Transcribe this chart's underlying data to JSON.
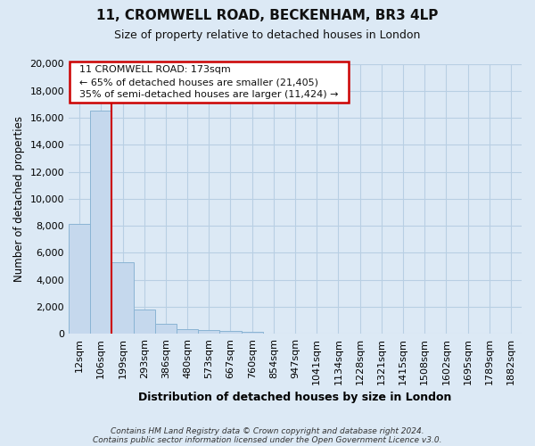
{
  "title": "11, CROMWELL ROAD, BECKENHAM, BR3 4LP",
  "subtitle": "Size of property relative to detached houses in London",
  "xlabel": "Distribution of detached houses by size in London",
  "ylabel": "Number of detached properties",
  "bar_categories": [
    "12sqm",
    "106sqm",
    "199sqm",
    "293sqm",
    "386sqm",
    "480sqm",
    "573sqm",
    "667sqm",
    "760sqm",
    "854sqm",
    "947sqm",
    "1041sqm",
    "1134sqm",
    "1228sqm",
    "1321sqm",
    "1415sqm",
    "1508sqm",
    "1602sqm",
    "1695sqm",
    "1789sqm",
    "1882sqm"
  ],
  "bar_values": [
    8150,
    16550,
    5300,
    1800,
    720,
    310,
    250,
    220,
    150,
    0,
    0,
    0,
    0,
    0,
    0,
    0,
    0,
    0,
    0,
    0,
    0
  ],
  "bar_color": "#c5d8ed",
  "bar_edge_color": "#8ab4d4",
  "vline_color": "#cc0000",
  "ylim": [
    0,
    20000
  ],
  "yticks": [
    0,
    2000,
    4000,
    6000,
    8000,
    10000,
    12000,
    14000,
    16000,
    18000,
    20000
  ],
  "annotation_box_title": "11 CROMWELL ROAD: 173sqm",
  "annotation_line1": "← 65% of detached houses are smaller (21,405)",
  "annotation_line2": "35% of semi-detached houses are larger (11,424) →",
  "footer_line1": "Contains HM Land Registry data © Crown copyright and database right 2024.",
  "footer_line2": "Contains public sector information licensed under the Open Government Licence v3.0.",
  "bg_color": "#dce9f5",
  "plot_bg_color": "#dce9f5",
  "grid_color": "#b8cfe3"
}
